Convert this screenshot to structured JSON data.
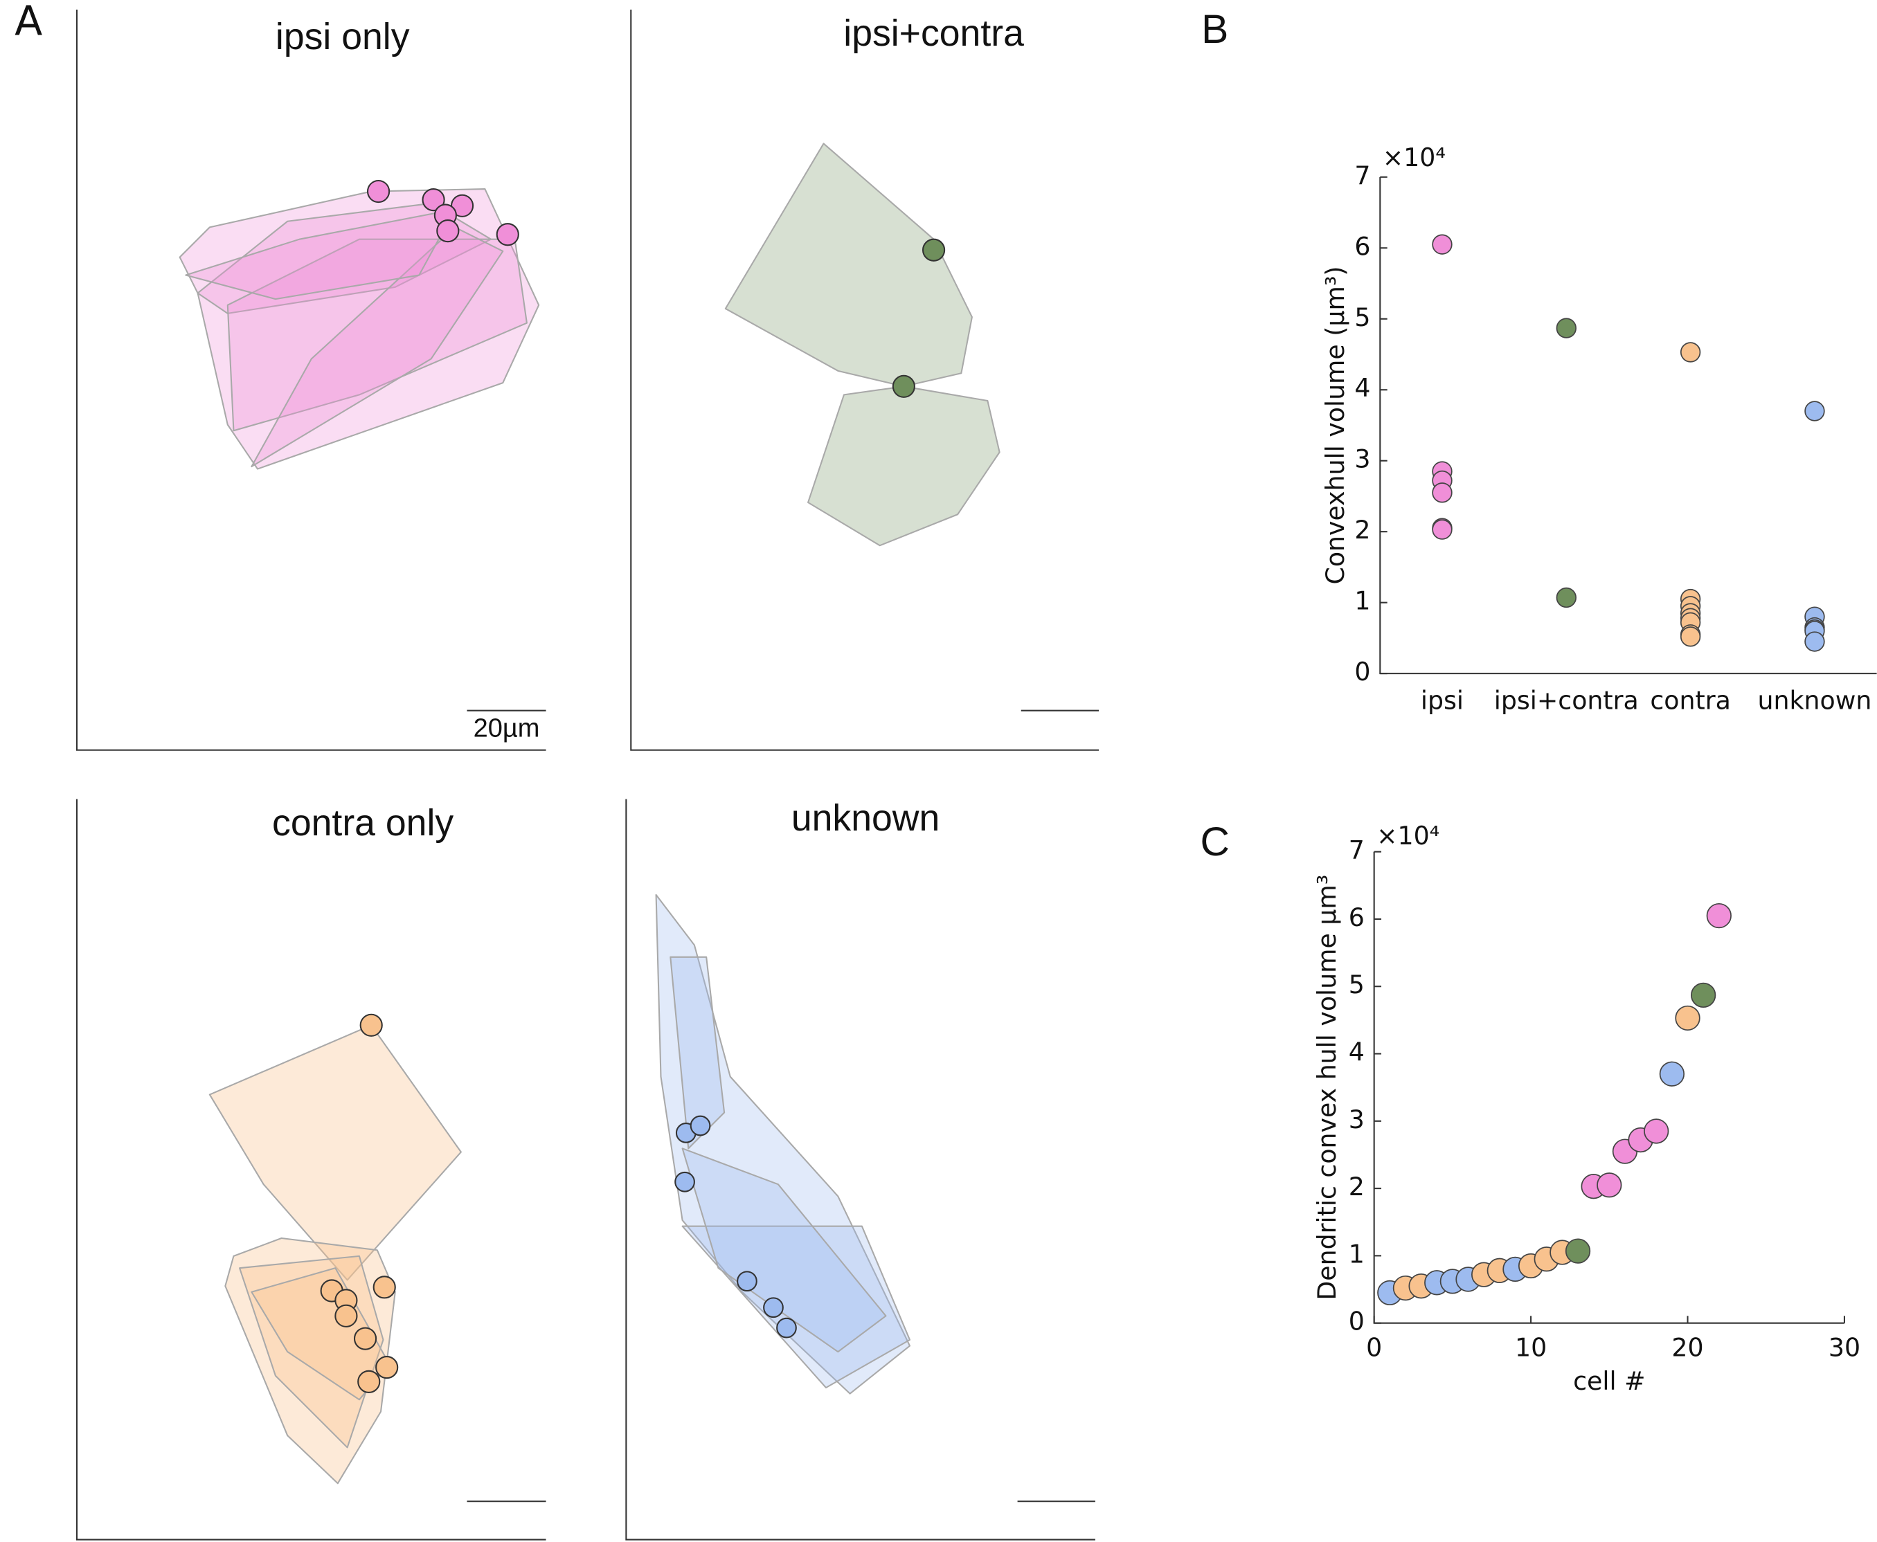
{
  "panel_labels": [
    "A",
    "B",
    "C"
  ],
  "morphology": [
    {
      "title": "ipsi only",
      "scale_bar_label": "20µm"
    },
    {
      "title": "ipsi+contra"
    },
    {
      "title": "contra only"
    },
    {
      "title": "unknown"
    }
  ],
  "chart_data": [
    {
      "type": "strip",
      "ylabel": "Convexhull volume (μm³)",
      "multiplier": "×10⁴",
      "categories": [
        "ipsi",
        "ipsi+contra",
        "contra",
        "unknown"
      ],
      "colors": [
        "#f08fd8",
        "#6f8f5c",
        "#f8c28e",
        "#9dbbef"
      ],
      "values": [
        [
          6.05,
          2.85,
          2.72,
          2.55,
          2.05,
          2.03
        ],
        [
          4.87,
          1.07
        ],
        [
          4.53,
          1.05,
          0.95,
          0.85,
          0.78,
          0.72,
          0.55,
          0.52
        ],
        [
          3.7,
          0.8,
          0.65,
          0.62,
          0.6,
          0.45
        ]
      ],
      "ylim": [
        0,
        7
      ],
      "yticks": [
        0,
        1,
        2,
        3,
        4,
        5,
        6,
        7
      ]
    },
    {
      "type": "scatter",
      "xlabel": "cell #",
      "ylabel": "Dendritic convex hull volume μm³",
      "multiplier": "×10⁴",
      "x": [
        1,
        2,
        3,
        4,
        5,
        6,
        7,
        8,
        9,
        10,
        11,
        12,
        13,
        14,
        15,
        16,
        17,
        18,
        19,
        20,
        21,
        22
      ],
      "values": [
        0.45,
        0.52,
        0.55,
        0.6,
        0.62,
        0.65,
        0.72,
        0.78,
        0.8,
        0.85,
        0.95,
        1.05,
        1.07,
        2.03,
        2.05,
        2.55,
        2.72,
        2.85,
        3.7,
        4.53,
        4.87,
        6.05
      ],
      "colors": [
        "#9dbbef",
        "#f8c28e",
        "#f8c28e",
        "#9dbbef",
        "#9dbbef",
        "#9dbbef",
        "#f8c28e",
        "#f8c28e",
        "#9dbbef",
        "#f8c28e",
        "#f8c28e",
        "#f8c28e",
        "#6f8f5c",
        "#f08fd8",
        "#f08fd8",
        "#f08fd8",
        "#f08fd8",
        "#f08fd8",
        "#9dbbef",
        "#f8c28e",
        "#6f8f5c",
        "#f08fd8"
      ],
      "xlim": [
        0,
        30
      ],
      "xticks": [
        0,
        10,
        20,
        30
      ],
      "ylim": [
        0,
        7
      ],
      "yticks": [
        0,
        1,
        2,
        3,
        4,
        5,
        6,
        7
      ]
    }
  ]
}
